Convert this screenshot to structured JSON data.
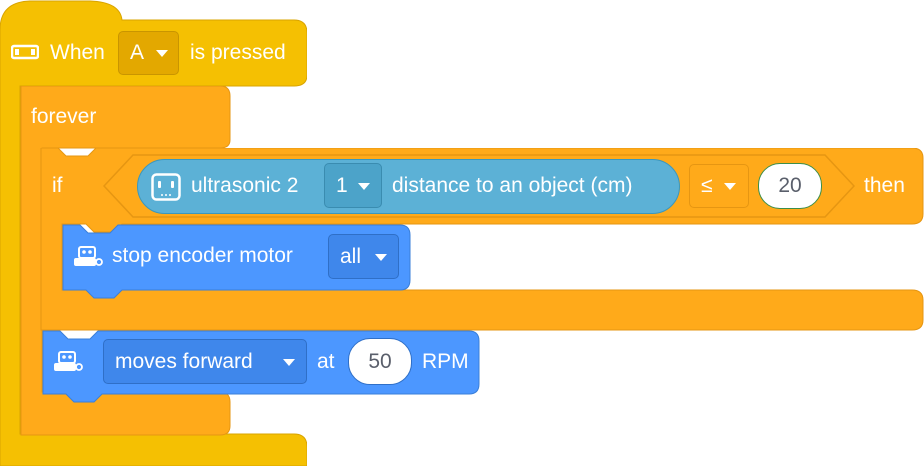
{
  "event_block": {
    "icon": "gamepad-icon",
    "when_label": "When",
    "key_value": "A",
    "suffix_label": "is pressed"
  },
  "forever_block": {
    "label": "forever"
  },
  "if_block": {
    "if_label": "if",
    "then_label": "then",
    "condition": {
      "sensor_icon": "ultrasonic-sensor-icon",
      "sensor_label": "ultrasonic 2",
      "port_value": "1",
      "measure_label": "distance to an object (cm)",
      "operator_value": "≤",
      "threshold_value": "20"
    }
  },
  "stop_block": {
    "icon": "robot-icon",
    "label": "stop encoder motor",
    "motor_value": "all"
  },
  "move_block": {
    "icon": "robot-icon",
    "direction_value": "moves forward",
    "at_label": "at",
    "speed_value": "50",
    "unit_label": "RPM"
  },
  "colors": {
    "event": "#F5C002",
    "event_dark": "#D9A400",
    "control": "#FFAA1A",
    "control_dark": "#E69612",
    "sensor": "#5CB1D6",
    "sensor_dark": "#3B97BD",
    "motion": "#4C97FF",
    "motion_dark": "#3A7FD9"
  }
}
